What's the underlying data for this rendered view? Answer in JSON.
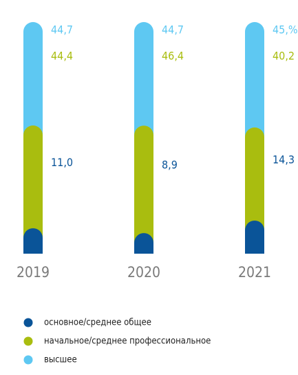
{
  "chart_data": {
    "type": "bar",
    "stacked": true,
    "categories": [
      "2019",
      "2020",
      "2021"
    ],
    "series": [
      {
        "name": "основное/среднее общее",
        "color": "#0a5498",
        "values": [
          11.0,
          8.9,
          14.3
        ],
        "value_labels": [
          "11,0",
          "8,9",
          "14,3"
        ]
      },
      {
        "name": "начальное/среднее профессиональное",
        "color": "#a9bd0f",
        "values": [
          44.4,
          46.4,
          40.2
        ],
        "value_labels": [
          "44,4",
          "46,4",
          "40,2"
        ]
      },
      {
        "name": "высшее",
        "color": "#5ec8f2",
        "values": [
          44.7,
          44.7,
          45.5
        ],
        "value_labels": [
          "44,7",
          "44,7",
          "45,%"
        ]
      }
    ]
  }
}
